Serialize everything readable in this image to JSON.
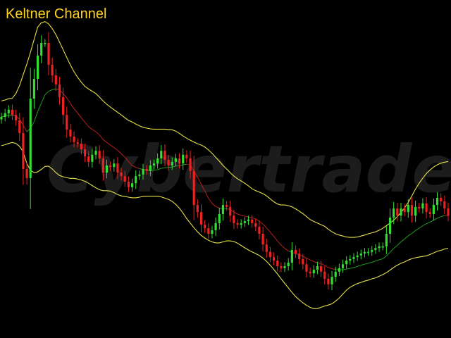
{
  "chart_data": {
    "type": "candlestick",
    "title": "Keltner Channel",
    "watermark": "Cybertrade",
    "xlabel": "",
    "ylabel": "",
    "y_range": [
      0,
      100
    ],
    "grid": false,
    "legend": "none",
    "colors": {
      "background": "#000000",
      "title": "#ffd21e",
      "up_candle": "#33dd33",
      "down_candle": "#ee2222",
      "band": "#e8e24a",
      "mid_line": "#cc2222",
      "mid_line_green": "#22aa22",
      "watermark": "#1c1c1c"
    },
    "close": [
      66.1,
      67.2,
      68.3,
      66.7,
      65.0,
      61.1,
      50.0,
      47.2,
      71.7,
      77.8,
      85.0,
      88.9,
      88.9,
      82.2,
      78.9,
      76.1,
      72.2,
      66.7,
      62.2,
      60.0,
      58.3,
      57.8,
      56.1,
      53.9,
      52.2,
      54.4,
      55.6,
      53.3,
      48.9,
      51.1,
      50.6,
      51.7,
      48.9,
      47.8,
      46.1,
      44.4,
      45.6,
      47.8,
      48.3,
      50.0,
      49.4,
      51.1,
      51.7,
      53.3,
      55.6,
      52.8,
      51.1,
      52.2,
      53.3,
      51.7,
      54.4,
      53.3,
      49.4,
      38.9,
      36.7,
      32.8,
      31.7,
      30.0,
      31.1,
      33.3,
      36.1,
      38.9,
      38.3,
      35.6,
      33.3,
      32.8,
      33.3,
      33.9,
      34.4,
      33.3,
      32.2,
      30.0,
      26.7,
      24.4,
      22.8,
      21.7,
      20.0,
      19.4,
      20.0,
      21.1,
      25.0,
      23.9,
      22.2,
      20.6,
      18.3,
      17.8,
      18.9,
      20.0,
      18.3,
      16.1,
      14.4,
      16.7,
      18.3,
      19.4,
      20.6,
      21.7,
      22.2,
      22.8,
      23.3,
      23.9,
      24.4,
      24.4,
      25.0,
      25.6,
      26.1,
      26.1,
      30.0,
      35.0,
      37.8,
      35.6,
      37.8,
      36.7,
      38.9,
      35.6,
      38.3,
      37.8,
      39.4,
      36.7,
      36.1,
      38.9,
      41.1,
      40.0,
      37.8,
      35.6
    ],
    "keltner_mid": [
      66.1,
      66.3,
      66.6,
      66.6,
      66.3,
      65.4,
      63.5,
      61.5,
      62.6,
      64.6,
      67.7,
      70.4,
      72.9,
      74.0,
      74.5,
      74.7,
      74.4,
      73.3,
      71.9,
      70.2,
      68.6,
      67.3,
      65.8,
      64.4,
      63.1,
      62.2,
      61.5,
      60.5,
      59.1,
      58.2,
      57.4,
      56.6,
      55.8,
      54.7,
      53.7,
      52.3,
      51.1,
      50.5,
      50.1,
      49.9,
      49.6,
      49.5,
      49.6,
      49.8,
      50.2,
      50.4,
      50.5,
      50.6,
      50.9,
      51.0,
      51.3,
      51.5,
      51.2,
      49.4,
      47.5,
      45.3,
      43.2,
      41.0,
      39.4,
      38.4,
      37.9,
      37.8,
      37.8,
      37.4,
      36.7,
      36.1,
      35.7,
      35.4,
      35.2,
      34.9,
      34.6,
      33.9,
      33.0,
      31.8,
      30.5,
      29.2,
      27.8,
      26.5,
      25.5,
      24.7,
      24.3,
      23.9,
      23.5,
      23.1,
      22.5,
      21.9,
      21.4,
      21.1,
      20.8,
      20.3,
      19.6,
      19.2,
      19.0,
      18.9,
      18.9,
      19.1,
      19.3,
      19.6,
      19.9,
      20.3,
      20.6,
      20.9,
      21.2,
      21.6,
      22.0,
      22.3,
      23.1,
      24.3,
      25.5,
      26.4,
      27.5,
      28.4,
      29.4,
      30.1,
      31.0,
      31.7,
      32.5,
      33.1,
      33.6,
      34.2,
      34.8,
      35.3,
      35.6,
      35.6
    ],
    "keltner_upper": [
      71.0,
      71.3,
      71.7,
      71.9,
      73.3,
      75.8,
      79.1,
      82.4,
      86.0,
      90.0,
      93.8,
      95.2,
      95.5,
      94.8,
      93.3,
      91.5,
      89.2,
      86.8,
      84.4,
      82.1,
      80.0,
      78.3,
      76.8,
      75.5,
      74.7,
      74.0,
      73.3,
      72.2,
      71.0,
      70.0,
      69.1,
      68.3,
      67.5,
      66.7,
      65.8,
      65.0,
      64.5,
      63.9,
      63.3,
      62.9,
      62.6,
      62.4,
      62.3,
      62.3,
      62.3,
      62.3,
      62.2,
      62.1,
      61.7,
      61.0,
      60.2,
      59.5,
      58.9,
      58.3,
      57.8,
      57.4,
      56.8,
      55.9,
      54.8,
      53.6,
      52.4,
      51.1,
      50.0,
      48.9,
      47.8,
      47.0,
      46.3,
      45.6,
      44.8,
      43.9,
      43.3,
      42.9,
      42.4,
      41.7,
      40.8,
      39.9,
      39.2,
      38.9,
      38.9,
      38.7,
      38.3,
      37.7,
      37.0,
      36.2,
      35.3,
      34.4,
      33.8,
      33.3,
      32.8,
      32.3,
      31.4,
      30.6,
      30.0,
      29.6,
      29.3,
      29.0,
      28.9,
      28.9,
      29.0,
      29.3,
      29.6,
      30.0,
      30.3,
      30.6,
      31.1,
      31.7,
      32.5,
      33.3,
      34.2,
      35.3,
      36.6,
      38.0,
      39.7,
      41.7,
      43.8,
      45.6,
      47.2,
      48.6,
      49.7,
      50.6,
      51.3,
      51.8,
      52.1,
      52.3
    ],
    "keltner_lower": [
      57.2,
      57.5,
      57.9,
      58.2,
      57.9,
      57.0,
      55.3,
      51.7,
      49.6,
      48.9,
      49.1,
      49.9,
      50.8,
      50.9,
      50.0,
      48.9,
      48.0,
      47.6,
      47.3,
      47.1,
      47.1,
      46.9,
      46.6,
      46.2,
      45.6,
      44.9,
      44.2,
      43.6,
      43.3,
      43.3,
      43.2,
      42.7,
      42.1,
      41.7,
      41.5,
      41.3,
      41.1,
      41.1,
      41.3,
      41.5,
      41.6,
      41.6,
      41.6,
      41.6,
      41.4,
      41.0,
      40.6,
      40.0,
      39.1,
      37.9,
      36.4,
      34.7,
      33.3,
      31.9,
      30.6,
      29.5,
      28.7,
      28.0,
      27.5,
      27.2,
      27.2,
      27.5,
      27.8,
      27.8,
      27.6,
      27.1,
      26.4,
      25.7,
      25.0,
      24.4,
      23.9,
      23.3,
      22.5,
      21.5,
      20.3,
      19.0,
      17.6,
      16.1,
      14.7,
      13.3,
      11.9,
      10.6,
      9.6,
      8.7,
      7.9,
      7.3,
      6.9,
      6.9,
      7.3,
      7.7,
      8.0,
      8.4,
      9.2,
      10.2,
      11.4,
      12.6,
      13.5,
      14.1,
      14.6,
      15.0,
      15.4,
      15.7,
      16.1,
      16.4,
      16.9,
      17.4,
      18.0,
      18.8,
      19.6,
      20.3,
      20.9,
      21.3,
      21.9,
      22.3,
      22.6,
      22.8,
      23.0,
      23.2,
      23.6,
      24.1,
      24.6,
      24.9,
      25.3,
      25.5
    ]
  }
}
